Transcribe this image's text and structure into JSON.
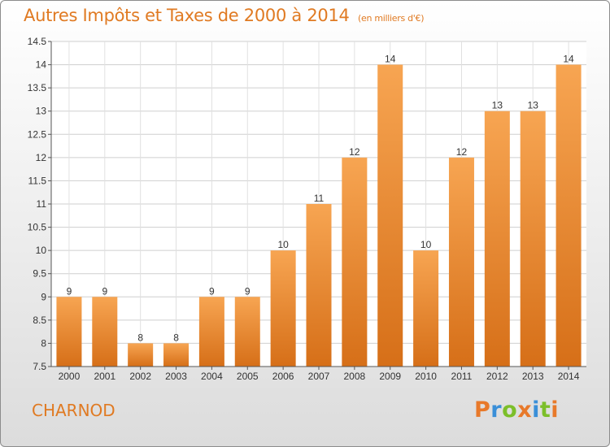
{
  "chart_data": {
    "type": "bar",
    "title": "Autres Impôts et Taxes de 2000 à 2014",
    "subtitle": "(en milliers d'€)",
    "categories": [
      "2000",
      "2001",
      "2002",
      "2003",
      "2004",
      "2005",
      "2006",
      "2007",
      "2008",
      "2009",
      "2010",
      "2011",
      "2012",
      "2013",
      "2014"
    ],
    "values": [
      9,
      9,
      8,
      8,
      9,
      9,
      10,
      11,
      12,
      14,
      10,
      12,
      13,
      13,
      14
    ],
    "value_labels": [
      "9",
      "9",
      "8",
      "8",
      "9",
      "9",
      "10",
      "11",
      "12",
      "14",
      "10",
      "12",
      "13",
      "13",
      "14"
    ],
    "ylim": [
      7.5,
      14.5
    ],
    "yticks": [
      "7.5",
      "8",
      "8.5",
      "9",
      "9.5",
      "10",
      "10.5",
      "11",
      "11.5",
      "12",
      "12.5",
      "13",
      "13.5",
      "14",
      "14.5"
    ],
    "grid": true,
    "bar_color": "#f28a2e",
    "accent_color": "#e07a22"
  },
  "footer": {
    "commune": "CHARNOD"
  },
  "logo": {
    "text": "Proxiti",
    "letter_colors": [
      "#e8792a",
      "#3a8fd8",
      "#7cbf2a",
      "#e8792a",
      "#3a8fd8",
      "#7cbf2a",
      "#e8792a"
    ]
  }
}
